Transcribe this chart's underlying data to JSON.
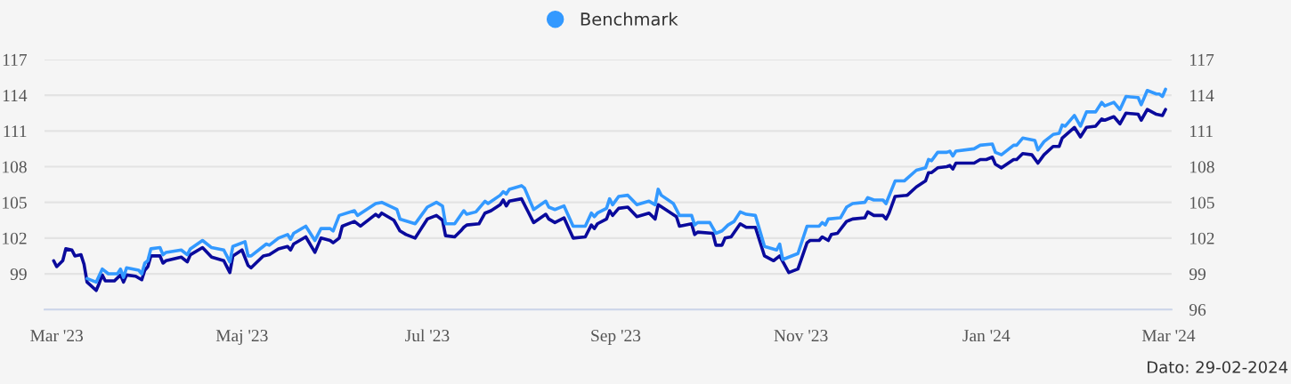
{
  "chart_data": {
    "type": "line",
    "legend": "top",
    "grid": "y",
    "line_style": "solid",
    "xlim": [
      "2023-02-25",
      "2024-03-02"
    ],
    "xticks": [
      {
        "value": "2023-03-01",
        "label": "Mar '23"
      },
      {
        "value": "2023-05-01",
        "label": "Maj '23"
      },
      {
        "value": "2023-07-01",
        "label": "Jul '23"
      },
      {
        "value": "2023-09-01",
        "label": "Sep '23"
      },
      {
        "value": "2023-11-01",
        "label": "Nov '23"
      },
      {
        "value": "2024-01-01",
        "label": "Jan '24"
      },
      {
        "value": "2024-03-01",
        "label": "Mar '24"
      }
    ],
    "ylim": [
      96,
      117
    ],
    "yticks": [
      {
        "value": 96,
        "label": null
      },
      99,
      102,
      105,
      108,
      111,
      114,
      117
    ],
    "y2lim": [
      96,
      117
    ],
    "y2ticks": [
      96,
      99,
      102,
      105,
      108,
      111,
      114,
      117
    ],
    "annotations": [
      "Dato: 29-02-2024"
    ],
    "series": [
      {
        "color": "#0a0a9c",
        "x": [
          "2023-02-28",
          "2023-03-01",
          "2023-03-03",
          "2023-03-04",
          "2023-03-06",
          "2023-03-07",
          "2023-03-09",
          "2023-03-10",
          "2023-03-11",
          "2023-03-14",
          "2023-03-15",
          "2023-03-16",
          "2023-03-17",
          "2023-03-20",
          "2023-03-22",
          "2023-03-23",
          "2023-03-24",
          "2023-03-27",
          "2023-03-29",
          "2023-03-30",
          "2023-03-31",
          "2023-04-01",
          "2023-04-04",
          "2023-04-05",
          "2023-04-06",
          "2023-04-11",
          "2023-04-13",
          "2023-04-14",
          "2023-04-18",
          "2023-04-21",
          "2023-04-25",
          "2023-04-27",
          "2023-04-28",
          "2023-05-01",
          "2023-05-03",
          "2023-05-04",
          "2023-05-08",
          "2023-05-10",
          "2023-05-13",
          "2023-05-16",
          "2023-05-17",
          "2023-05-18",
          "2023-05-22",
          "2023-05-25",
          "2023-05-27",
          "2023-05-30",
          "2023-05-31",
          "2023-06-02",
          "2023-06-03",
          "2023-06-07",
          "2023-06-09",
          "2023-06-14",
          "2023-06-15",
          "2023-06-16",
          "2023-06-20",
          "2023-06-22",
          "2023-06-24",
          "2023-06-27",
          "2023-06-29",
          "2023-07-01",
          "2023-07-04",
          "2023-07-06",
          "2023-07-07",
          "2023-07-10",
          "2023-07-12",
          "2023-07-13",
          "2023-07-14",
          "2023-07-18",
          "2023-07-20",
          "2023-07-22",
          "2023-07-25",
          "2023-07-26",
          "2023-07-27",
          "2023-07-28",
          "2023-08-01",
          "2023-08-03",
          "2023-08-05",
          "2023-08-09",
          "2023-08-10",
          "2023-08-12",
          "2023-08-15",
          "2023-08-18",
          "2023-08-22",
          "2023-08-24",
          "2023-08-25",
          "2023-08-26",
          "2023-08-29",
          "2023-08-30",
          "2023-08-31",
          "2023-09-02",
          "2023-09-05",
          "2023-09-08",
          "2023-09-12",
          "2023-09-14",
          "2023-09-15",
          "2023-09-18",
          "2023-09-21",
          "2023-09-22",
          "2023-09-26",
          "2023-09-27",
          "2023-09-28",
          "2023-10-03",
          "2023-10-04",
          "2023-10-06",
          "2023-10-07",
          "2023-10-09",
          "2023-10-12",
          "2023-10-14",
          "2023-10-17",
          "2023-10-20",
          "2023-10-23",
          "2023-10-25",
          "2023-10-28",
          "2023-10-31",
          "2023-11-03",
          "2023-11-04",
          "2023-11-07",
          "2023-11-08",
          "2023-11-10",
          "2023-11-11",
          "2023-11-13",
          "2023-11-16",
          "2023-11-17",
          "2023-11-18",
          "2023-11-22",
          "2023-11-23",
          "2023-11-25",
          "2023-11-28",
          "2023-11-29",
          "2023-11-30",
          "2023-12-02",
          "2023-12-06",
          "2023-12-09",
          "2023-12-12",
          "2023-12-13",
          "2023-12-14",
          "2023-12-16",
          "2023-12-19",
          "2023-12-20",
          "2023-12-21",
          "2023-12-22",
          "2023-12-28",
          "2023-12-30",
          "2024-01-01",
          "2024-01-03",
          "2024-01-04",
          "2024-01-06",
          "2024-01-10",
          "2024-01-11",
          "2024-01-13",
          "2024-01-16",
          "2024-01-18",
          "2024-01-20",
          "2024-01-23",
          "2024-01-25",
          "2024-01-26",
          "2024-01-30",
          "2024-02-01",
          "2024-02-03",
          "2024-02-06",
          "2024-02-08",
          "2024-02-09",
          "2024-02-12",
          "2024-02-14",
          "2024-02-16",
          "2024-02-20",
          "2024-02-21",
          "2024-02-23",
          "2024-02-26",
          "2024-02-28",
          "2024-02-29"
        ],
        "values": [
          100.1,
          99.6,
          100.1,
          101.1,
          101.0,
          100.5,
          100.6,
          99.8,
          98.3,
          97.6,
          98.2,
          98.9,
          98.4,
          98.4,
          98.9,
          98.3,
          98.9,
          98.8,
          98.5,
          99.3,
          99.6,
          100.5,
          100.5,
          99.9,
          100.1,
          100.4,
          100.0,
          100.6,
          101.2,
          100.4,
          100.1,
          99.1,
          100.5,
          101.0,
          99.7,
          99.5,
          100.5,
          100.6,
          101.1,
          101.3,
          101.0,
          101.5,
          102.1,
          100.8,
          102.0,
          101.8,
          101.6,
          102.0,
          103.0,
          103.4,
          103.0,
          104.0,
          103.8,
          104.1,
          103.5,
          102.6,
          102.3,
          102.0,
          102.8,
          103.6,
          103.9,
          103.5,
          102.2,
          102.1,
          102.6,
          102.9,
          103.1,
          103.2,
          104.1,
          104.3,
          104.8,
          105.2,
          104.7,
          105.1,
          105.3,
          104.3,
          103.3,
          104.0,
          103.6,
          103.3,
          103.7,
          102.0,
          102.1,
          103.1,
          102.8,
          103.2,
          103.6,
          104.3,
          103.9,
          104.5,
          104.6,
          103.8,
          104.1,
          103.6,
          104.8,
          104.3,
          103.8,
          103.0,
          103.2,
          102.3,
          102.5,
          102.4,
          101.4,
          101.4,
          102.0,
          102.1,
          103.2,
          102.9,
          102.9,
          100.5,
          100.1,
          100.5,
          99.1,
          99.4,
          101.6,
          101.8,
          101.8,
          102.1,
          101.8,
          102.3,
          102.4,
          103.4,
          103.5,
          103.6,
          103.7,
          104.2,
          103.9,
          103.9,
          103.6,
          104.1,
          105.5,
          105.6,
          106.3,
          106.8,
          107.5,
          107.5,
          107.9,
          108.0,
          108.1,
          107.8,
          108.3,
          108.3,
          108.6,
          108.6,
          108.8,
          108.2,
          107.9,
          108.6,
          108.6,
          109.1,
          109.0,
          108.3,
          109.0,
          109.7,
          109.7,
          110.4,
          111.3,
          110.5,
          111.3,
          111.4,
          112.0,
          111.9,
          112.2,
          111.6,
          112.5,
          112.4,
          111.9,
          112.8,
          112.4,
          112.3,
          112.8
        ]
      },
      {
        "name": "Benchmark",
        "color": "#3399ff",
        "x": [
          "2023-03-11",
          "2023-03-14",
          "2023-03-16",
          "2023-03-18",
          "2023-03-21",
          "2023-03-22",
          "2023-03-23",
          "2023-03-24",
          "2023-03-28",
          "2023-03-29",
          "2023-03-30",
          "2023-03-31",
          "2023-04-01",
          "2023-04-04",
          "2023-04-05",
          "2023-04-06",
          "2023-04-11",
          "2023-04-13",
          "2023-04-14",
          "2023-04-18",
          "2023-04-21",
          "2023-04-25",
          "2023-04-27",
          "2023-04-28",
          "2023-05-02",
          "2023-05-03",
          "2023-05-04",
          "2023-05-09",
          "2023-05-10",
          "2023-05-13",
          "2023-05-16",
          "2023-05-17",
          "2023-05-18",
          "2023-05-22",
          "2023-05-25",
          "2023-05-27",
          "2023-05-30",
          "2023-05-31",
          "2023-06-02",
          "2023-06-07",
          "2023-06-08",
          "2023-06-14",
          "2023-06-16",
          "2023-06-21",
          "2023-06-22",
          "2023-06-27",
          "2023-06-29",
          "2023-07-01",
          "2023-07-04",
          "2023-07-06",
          "2023-07-07",
          "2023-07-10",
          "2023-07-13",
          "2023-07-14",
          "2023-07-17",
          "2023-07-20",
          "2023-07-21",
          "2023-07-25",
          "2023-07-26",
          "2023-07-27",
          "2023-07-28",
          "2023-08-01",
          "2023-08-02",
          "2023-08-05",
          "2023-08-09",
          "2023-08-10",
          "2023-08-12",
          "2023-08-15",
          "2023-08-18",
          "2023-08-22",
          "2023-08-24",
          "2023-08-25",
          "2023-08-26",
          "2023-08-29",
          "2023-08-30",
          "2023-08-31",
          "2023-09-02",
          "2023-09-05",
          "2023-09-08",
          "2023-09-12",
          "2023-09-14",
          "2023-09-15",
          "2023-09-16",
          "2023-09-20",
          "2023-09-22",
          "2023-09-26",
          "2023-09-27",
          "2023-09-28",
          "2023-10-02",
          "2023-10-04",
          "2023-10-06",
          "2023-10-08",
          "2023-10-10",
          "2023-10-12",
          "2023-10-14",
          "2023-10-17",
          "2023-10-20",
          "2023-10-24",
          "2023-10-25",
          "2023-10-26",
          "2023-10-28",
          "2023-10-31",
          "2023-11-03",
          "2023-11-07",
          "2023-11-08",
          "2023-11-09",
          "2023-11-10",
          "2023-11-14",
          "2023-11-16",
          "2023-11-18",
          "2023-11-22",
          "2023-11-23",
          "2023-11-25",
          "2023-11-28",
          "2023-11-29",
          "2023-12-02",
          "2023-12-05",
          "2023-12-09",
          "2023-12-12",
          "2023-12-13",
          "2023-12-14",
          "2023-12-16",
          "2023-12-19",
          "2023-12-20",
          "2023-12-21",
          "2023-12-22",
          "2023-12-28",
          "2023-12-30",
          "2024-01-03",
          "2024-01-04",
          "2024-01-06",
          "2024-01-10",
          "2024-01-11",
          "2024-01-13",
          "2024-01-17",
          "2024-01-18",
          "2024-01-20",
          "2024-01-23",
          "2024-01-25",
          "2024-01-26",
          "2024-01-27",
          "2024-01-30",
          "2024-02-01",
          "2024-02-03",
          "2024-02-06",
          "2024-02-08",
          "2024-02-09",
          "2024-02-12",
          "2024-02-14",
          "2024-02-16",
          "2024-02-20",
          "2024-02-21",
          "2024-02-23",
          "2024-02-26",
          "2024-02-27",
          "2024-02-28",
          "2024-02-29"
        ],
        "values": [
          98.6,
          98.3,
          99.4,
          99.0,
          99.0,
          99.4,
          98.7,
          99.5,
          99.3,
          99.0,
          99.9,
          100.1,
          101.1,
          101.2,
          100.6,
          100.8,
          101.0,
          100.6,
          101.1,
          101.8,
          101.2,
          101.0,
          100.0,
          101.3,
          101.7,
          100.5,
          100.5,
          101.5,
          101.4,
          102.0,
          102.3,
          101.9,
          102.4,
          103.0,
          101.8,
          102.8,
          102.8,
          102.6,
          103.9,
          104.3,
          103.9,
          104.9,
          105.0,
          104.4,
          103.6,
          103.2,
          103.9,
          104.6,
          105.0,
          104.7,
          103.2,
          103.2,
          104.3,
          104.0,
          104.2,
          105.1,
          104.9,
          105.6,
          105.9,
          105.7,
          106.1,
          106.4,
          106.2,
          104.4,
          105.1,
          104.6,
          104.4,
          104.7,
          103.0,
          103.0,
          104.1,
          103.8,
          104.1,
          104.5,
          105.3,
          104.8,
          105.5,
          105.6,
          104.8,
          105.1,
          104.8,
          106.1,
          105.6,
          104.9,
          103.9,
          103.9,
          103.1,
          103.3,
          103.3,
          102.4,
          102.6,
          103.1,
          103.4,
          104.2,
          104.0,
          103.9,
          101.3,
          101.0,
          101.5,
          100.2,
          100.4,
          100.7,
          103.0,
          103.0,
          103.3,
          103.1,
          103.6,
          103.7,
          104.6,
          104.9,
          105.0,
          105.4,
          105.2,
          105.2,
          104.9,
          106.8,
          106.8,
          107.7,
          107.9,
          108.6,
          108.5,
          109.2,
          109.2,
          109.3,
          108.9,
          109.3,
          109.5,
          109.8,
          109.9,
          109.2,
          109.0,
          109.8,
          109.8,
          110.4,
          110.2,
          109.4,
          110.1,
          110.7,
          110.8,
          111.5,
          111.4,
          112.3,
          111.4,
          112.6,
          112.6,
          113.4,
          113.1,
          113.4,
          112.8,
          113.9,
          113.8,
          113.2,
          114.4,
          114.1,
          114.1,
          113.9,
          114.5
        ]
      }
    ]
  }
}
